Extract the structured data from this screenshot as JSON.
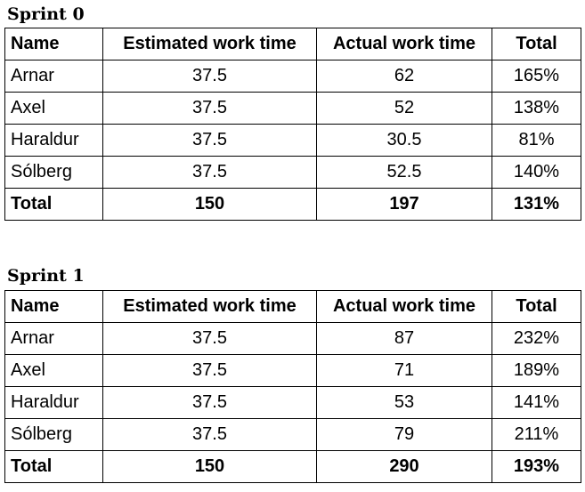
{
  "sprints": [
    {
      "title": "Sprint 0",
      "headers": [
        "Name",
        "Estimated work time",
        "Actual work time",
        "Total"
      ],
      "rows": [
        [
          "Arnar",
          "37.5",
          "62",
          "165%"
        ],
        [
          "Axel",
          "37.5",
          "52",
          "138%"
        ],
        [
          "Haraldur",
          "37.5",
          "30.5",
          "81%"
        ],
        [
          "Sólberg",
          "37.5",
          "52.5",
          "140%"
        ]
      ],
      "total": [
        "Total",
        "150",
        "197",
        "131%"
      ]
    },
    {
      "title": "Sprint 1",
      "headers": [
        "Name",
        "Estimated work time",
        "Actual work time",
        "Total"
      ],
      "rows": [
        [
          "Arnar",
          "37.5",
          "87",
          "232%"
        ],
        [
          "Axel",
          "37.5",
          "71",
          "189%"
        ],
        [
          "Haraldur",
          "37.5",
          "53",
          "141%"
        ],
        [
          "Sólberg",
          "37.5",
          "79",
          "211%"
        ]
      ],
      "total": [
        "Total",
        "150",
        "290",
        "193%"
      ]
    }
  ]
}
